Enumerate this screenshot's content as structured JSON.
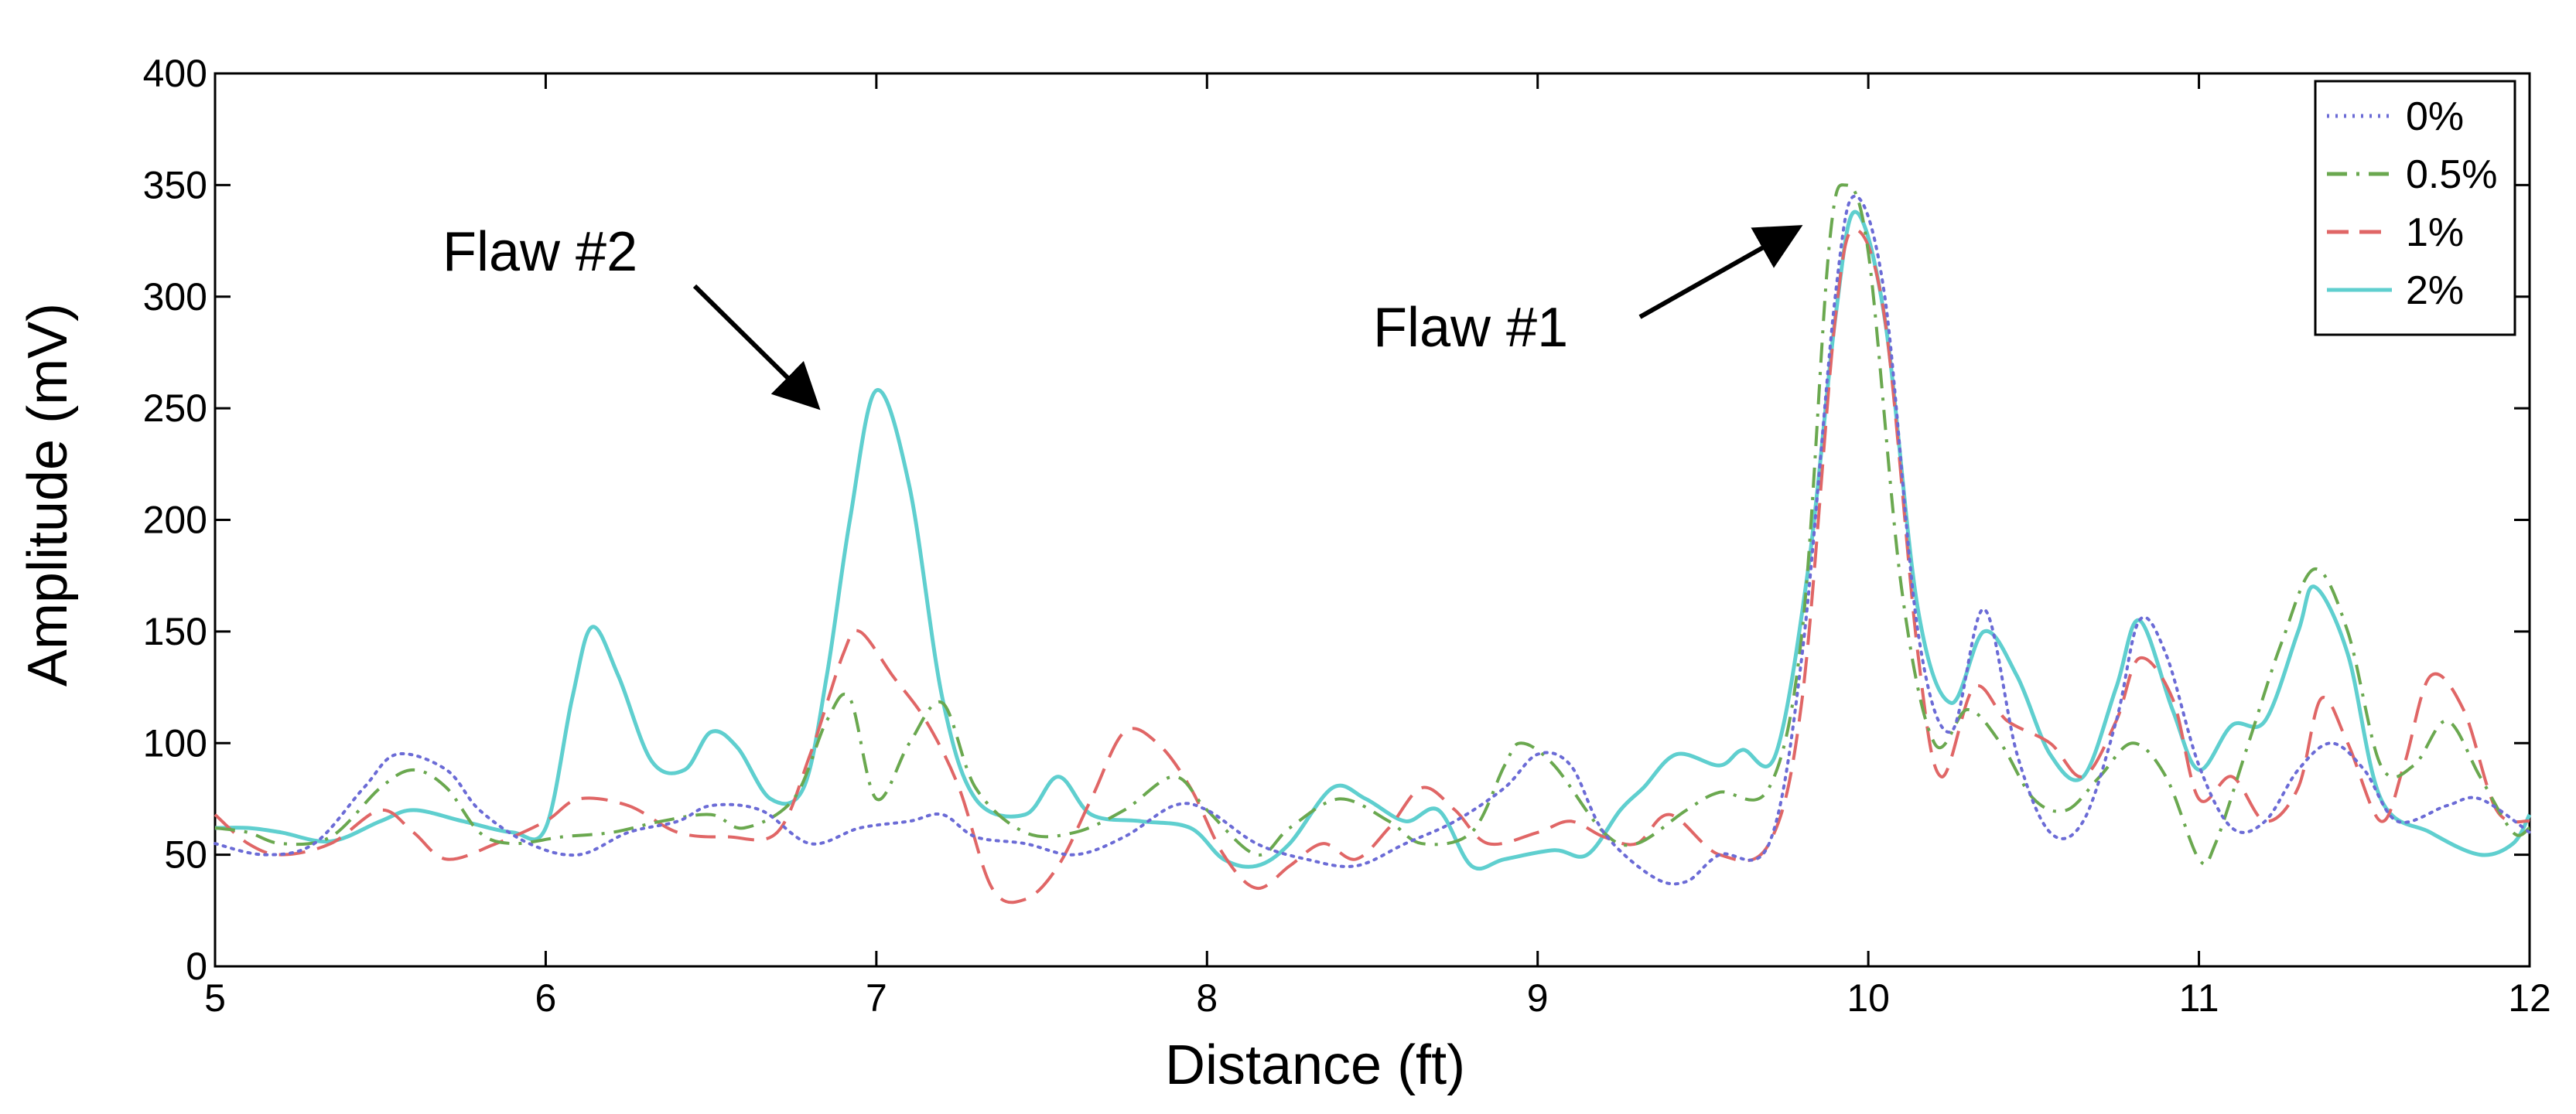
{
  "chart_data": {
    "type": "line",
    "xlabel": "Distance (ft)",
    "ylabel": "Amplitude (mV)",
    "xlim": [
      5,
      12
    ],
    "ylim": [
      0,
      400
    ],
    "xticks": [
      5,
      6,
      7,
      8,
      9,
      10,
      11,
      12
    ],
    "yticks": [
      0,
      50,
      100,
      150,
      200,
      250,
      300,
      350,
      400
    ],
    "grid": false,
    "legend_position": "top-right",
    "series": [
      {
        "name": "0%",
        "color": "#6b6bd6",
        "dash": "dotted",
        "points": [
          [
            5.0,
            55
          ],
          [
            5.15,
            50
          ],
          [
            5.3,
            55
          ],
          [
            5.45,
            80
          ],
          [
            5.55,
            95
          ],
          [
            5.7,
            88
          ],
          [
            5.8,
            70
          ],
          [
            5.95,
            55
          ],
          [
            6.1,
            50
          ],
          [
            6.25,
            60
          ],
          [
            6.4,
            65
          ],
          [
            6.5,
            72
          ],
          [
            6.65,
            70
          ],
          [
            6.8,
            55
          ],
          [
            6.95,
            62
          ],
          [
            7.1,
            65
          ],
          [
            7.2,
            68
          ],
          [
            7.3,
            58
          ],
          [
            7.45,
            55
          ],
          [
            7.6,
            50
          ],
          [
            7.75,
            58
          ],
          [
            7.9,
            72
          ],
          [
            8.0,
            70
          ],
          [
            8.15,
            55
          ],
          [
            8.3,
            48
          ],
          [
            8.45,
            45
          ],
          [
            8.6,
            55
          ],
          [
            8.75,
            65
          ],
          [
            8.9,
            80
          ],
          [
            9.0,
            95
          ],
          [
            9.1,
            90
          ],
          [
            9.2,
            60
          ],
          [
            9.35,
            40
          ],
          [
            9.45,
            38
          ],
          [
            9.55,
            50
          ],
          [
            9.7,
            55
          ],
          [
            9.8,
            140
          ],
          [
            9.9,
            300
          ],
          [
            9.96,
            345
          ],
          [
            10.05,
            300
          ],
          [
            10.15,
            150
          ],
          [
            10.25,
            105
          ],
          [
            10.35,
            160
          ],
          [
            10.45,
            95
          ],
          [
            10.55,
            60
          ],
          [
            10.65,
            65
          ],
          [
            10.75,
            110
          ],
          [
            10.82,
            155
          ],
          [
            10.9,
            140
          ],
          [
            11.0,
            90
          ],
          [
            11.1,
            62
          ],
          [
            11.2,
            65
          ],
          [
            11.3,
            88
          ],
          [
            11.4,
            100
          ],
          [
            11.5,
            88
          ],
          [
            11.6,
            65
          ],
          [
            11.75,
            72
          ],
          [
            11.85,
            75
          ],
          [
            12.0,
            60
          ]
        ]
      },
      {
        "name": "0.5%",
        "color": "#6aa84f",
        "dash": "dash-dot",
        "points": [
          [
            5.0,
            62
          ],
          [
            5.1,
            60
          ],
          [
            5.2,
            55
          ],
          [
            5.35,
            58
          ],
          [
            5.5,
            80
          ],
          [
            5.6,
            88
          ],
          [
            5.7,
            80
          ],
          [
            5.8,
            60
          ],
          [
            5.9,
            55
          ],
          [
            6.05,
            58
          ],
          [
            6.2,
            60
          ],
          [
            6.35,
            65
          ],
          [
            6.5,
            68
          ],
          [
            6.6,
            62
          ],
          [
            6.75,
            75
          ],
          [
            6.85,
            110
          ],
          [
            6.92,
            120
          ],
          [
            7.0,
            75
          ],
          [
            7.1,
            100
          ],
          [
            7.2,
            118
          ],
          [
            7.3,
            80
          ],
          [
            7.45,
            60
          ],
          [
            7.6,
            60
          ],
          [
            7.75,
            70
          ],
          [
            7.9,
            85
          ],
          [
            8.0,
            70
          ],
          [
            8.15,
            50
          ],
          [
            8.25,
            62
          ],
          [
            8.4,
            75
          ],
          [
            8.55,
            65
          ],
          [
            8.65,
            55
          ],
          [
            8.8,
            60
          ],
          [
            8.9,
            90
          ],
          [
            8.95,
            100
          ],
          [
            9.05,
            90
          ],
          [
            9.2,
            60
          ],
          [
            9.3,
            55
          ],
          [
            9.45,
            70
          ],
          [
            9.55,
            78
          ],
          [
            9.7,
            80
          ],
          [
            9.8,
            150
          ],
          [
            9.88,
            320
          ],
          [
            9.93,
            350
          ],
          [
            10.0,
            320
          ],
          [
            10.1,
            170
          ],
          [
            10.2,
            100
          ],
          [
            10.3,
            115
          ],
          [
            10.4,
            100
          ],
          [
            10.5,
            75
          ],
          [
            10.6,
            70
          ],
          [
            10.7,
            85
          ],
          [
            10.8,
            100
          ],
          [
            10.9,
            85
          ],
          [
            11.0,
            48
          ],
          [
            11.05,
            55
          ],
          [
            11.15,
            100
          ],
          [
            11.25,
            145
          ],
          [
            11.35,
            178
          ],
          [
            11.45,
            150
          ],
          [
            11.55,
            90
          ],
          [
            11.65,
            90
          ],
          [
            11.75,
            110
          ],
          [
            11.85,
            85
          ],
          [
            11.95,
            60
          ],
          [
            12.0,
            62
          ]
        ]
      },
      {
        "name": "1%",
        "color": "#e06666",
        "dash": "dashed",
        "points": [
          [
            5.0,
            68
          ],
          [
            5.1,
            55
          ],
          [
            5.2,
            50
          ],
          [
            5.35,
            55
          ],
          [
            5.5,
            70
          ],
          [
            5.6,
            60
          ],
          [
            5.7,
            48
          ],
          [
            5.85,
            55
          ],
          [
            6.0,
            65
          ],
          [
            6.1,
            75
          ],
          [
            6.25,
            72
          ],
          [
            6.4,
            60
          ],
          [
            6.55,
            58
          ],
          [
            6.7,
            60
          ],
          [
            6.8,
            95
          ],
          [
            6.9,
            140
          ],
          [
            6.95,
            150
          ],
          [
            7.05,
            130
          ],
          [
            7.15,
            110
          ],
          [
            7.25,
            80
          ],
          [
            7.35,
            35
          ],
          [
            7.45,
            30
          ],
          [
            7.55,
            45
          ],
          [
            7.65,
            75
          ],
          [
            7.75,
            105
          ],
          [
            7.85,
            100
          ],
          [
            7.95,
            80
          ],
          [
            8.05,
            50
          ],
          [
            8.15,
            35
          ],
          [
            8.25,
            45
          ],
          [
            8.35,
            55
          ],
          [
            8.45,
            48
          ],
          [
            8.55,
            62
          ],
          [
            8.65,
            80
          ],
          [
            8.75,
            70
          ],
          [
            8.85,
            55
          ],
          [
            9.0,
            60
          ],
          [
            9.1,
            65
          ],
          [
            9.2,
            58
          ],
          [
            9.3,
            55
          ],
          [
            9.4,
            68
          ],
          [
            9.55,
            50
          ],
          [
            9.7,
            55
          ],
          [
            9.8,
            120
          ],
          [
            9.9,
            290
          ],
          [
            9.96,
            330
          ],
          [
            10.05,
            290
          ],
          [
            10.15,
            140
          ],
          [
            10.22,
            85
          ],
          [
            10.32,
            125
          ],
          [
            10.42,
            110
          ],
          [
            10.55,
            100
          ],
          [
            10.65,
            85
          ],
          [
            10.75,
            110
          ],
          [
            10.82,
            138
          ],
          [
            10.92,
            120
          ],
          [
            11.0,
            75
          ],
          [
            11.1,
            85
          ],
          [
            11.2,
            65
          ],
          [
            11.3,
            80
          ],
          [
            11.37,
            120
          ],
          [
            11.45,
            100
          ],
          [
            11.55,
            65
          ],
          [
            11.62,
            90
          ],
          [
            11.7,
            130
          ],
          [
            11.8,
            115
          ],
          [
            11.9,
            70
          ],
          [
            12.0,
            65
          ]
        ]
      },
      {
        "name": "2%",
        "color": "#5fcfcf",
        "dash": "solid",
        "points": [
          [
            5.0,
            62
          ],
          [
            5.1,
            62
          ],
          [
            5.2,
            60
          ],
          [
            5.35,
            56
          ],
          [
            5.5,
            65
          ],
          [
            5.6,
            70
          ],
          [
            5.75,
            65
          ],
          [
            5.9,
            60
          ],
          [
            6.0,
            62
          ],
          [
            6.08,
            120
          ],
          [
            6.14,
            152
          ],
          [
            6.22,
            130
          ],
          [
            6.32,
            92
          ],
          [
            6.42,
            88
          ],
          [
            6.5,
            105
          ],
          [
            6.58,
            98
          ],
          [
            6.68,
            75
          ],
          [
            6.78,
            80
          ],
          [
            6.85,
            130
          ],
          [
            6.92,
            200
          ],
          [
            7.0,
            258
          ],
          [
            7.1,
            215
          ],
          [
            7.2,
            120
          ],
          [
            7.3,
            75
          ],
          [
            7.45,
            68
          ],
          [
            7.55,
            85
          ],
          [
            7.65,
            68
          ],
          [
            7.8,
            65
          ],
          [
            7.95,
            62
          ],
          [
            8.05,
            48
          ],
          [
            8.15,
            45
          ],
          [
            8.25,
            55
          ],
          [
            8.38,
            80
          ],
          [
            8.48,
            75
          ],
          [
            8.6,
            65
          ],
          [
            8.7,
            70
          ],
          [
            8.8,
            45
          ],
          [
            8.9,
            48
          ],
          [
            9.05,
            52
          ],
          [
            9.15,
            50
          ],
          [
            9.25,
            70
          ],
          [
            9.32,
            80
          ],
          [
            9.42,
            95
          ],
          [
            9.55,
            90
          ],
          [
            9.62,
            97
          ],
          [
            9.72,
            95
          ],
          [
            9.82,
            180
          ],
          [
            9.9,
            290
          ],
          [
            9.96,
            338
          ],
          [
            10.05,
            290
          ],
          [
            10.15,
            160
          ],
          [
            10.25,
            118
          ],
          [
            10.35,
            150
          ],
          [
            10.45,
            130
          ],
          [
            10.55,
            95
          ],
          [
            10.65,
            85
          ],
          [
            10.75,
            125
          ],
          [
            10.82,
            155
          ],
          [
            10.92,
            115
          ],
          [
            11.0,
            88
          ],
          [
            11.1,
            108
          ],
          [
            11.2,
            110
          ],
          [
            11.3,
            150
          ],
          [
            11.35,
            170
          ],
          [
            11.45,
            140
          ],
          [
            11.55,
            75
          ],
          [
            11.7,
            60
          ],
          [
            11.85,
            50
          ],
          [
            11.95,
            55
          ],
          [
            12.0,
            68
          ]
        ]
      }
    ],
    "annotations": [
      {
        "text": "Flaw #1",
        "points_to": [
          9.78,
          330
        ]
      },
      {
        "text": "Flaw #2",
        "points_to": [
          6.82,
          250
        ]
      }
    ]
  }
}
